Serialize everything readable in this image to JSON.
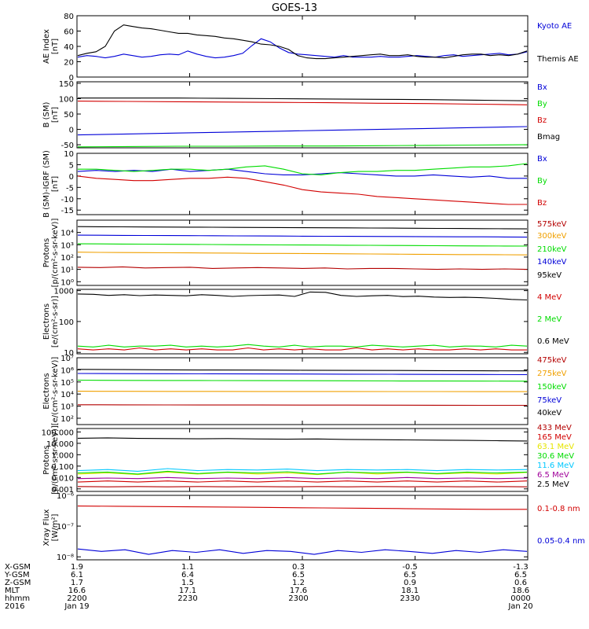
{
  "title": "GOES-13",
  "colors": {
    "black": "#000000",
    "blue": "#0000d8",
    "green": "#00dc00",
    "red": "#d20000",
    "darkred": "#b40000",
    "orange": "#f0a000",
    "yellow": "#e6e600",
    "cyan": "#00c8ff",
    "purple": "#a0009a"
  },
  "chart_data": [
    {
      "type": "line",
      "panel": "ae",
      "ylabel": [
        "AE Index",
        "[nT]"
      ],
      "yscale": "linear",
      "ylim": [
        0,
        80
      ],
      "yticks": [
        {
          "v": 0,
          "t": "0"
        },
        {
          "v": 20,
          "t": "20"
        },
        {
          "v": 40,
          "t": "40"
        },
        {
          "v": 60,
          "t": "60"
        },
        {
          "v": 80,
          "t": "80"
        }
      ],
      "series": [
        {
          "name": "Kyoto AE",
          "color": "blue",
          "y": [
            26,
            28,
            27,
            25,
            27,
            30,
            28,
            26,
            27,
            29,
            30,
            29,
            34,
            30,
            27,
            25,
            26,
            28,
            31,
            41,
            50,
            46,
            38,
            32,
            30,
            29,
            28,
            27,
            26,
            28,
            26,
            26,
            26,
            27,
            26,
            26,
            27,
            28,
            27,
            26,
            28,
            29,
            27,
            28,
            29,
            30,
            31,
            29,
            30,
            33
          ]
        },
        {
          "name": "Themis AE",
          "color": "black",
          "y": [
            28,
            31,
            33,
            40,
            60,
            68,
            66,
            64,
            63,
            61,
            59,
            57,
            57,
            55,
            54,
            53,
            51,
            50,
            48,
            46,
            43,
            42,
            40,
            36,
            28,
            25,
            24,
            24,
            25,
            26,
            27,
            28,
            29,
            30,
            28,
            28,
            29,
            27,
            26,
            26,
            25,
            27,
            29,
            30,
            30,
            28,
            29,
            28,
            30,
            34
          ]
        }
      ]
    },
    {
      "type": "line",
      "panel": "bsm",
      "ylabel": [
        "B (SM)",
        "[nT]"
      ],
      "yscale": "linear",
      "ylim": [
        -60,
        155
      ],
      "yticks": [
        {
          "v": -50,
          "t": "-50"
        },
        {
          "v": 0,
          "t": "0"
        },
        {
          "v": 50,
          "t": "50"
        },
        {
          "v": 100,
          "t": "100"
        },
        {
          "v": 150,
          "t": "150"
        }
      ],
      "series": [
        {
          "name": "Bx",
          "color": "blue",
          "y": [
            -18,
            -15,
            -12,
            -9,
            -6,
            -3,
            0,
            3,
            6,
            9
          ]
        },
        {
          "name": "By",
          "color": "green",
          "y": [
            -57,
            -56,
            -55,
            -55,
            -54,
            -54,
            -53,
            -52,
            -51,
            -50
          ]
        },
        {
          "name": "Bz",
          "color": "red",
          "y": [
            92,
            91,
            90,
            89,
            88,
            87,
            85,
            84,
            82,
            80
          ]
        },
        {
          "name": "Bmag",
          "color": "black",
          "y": [
            102,
            102,
            102,
            101,
            100,
            99,
            98,
            97,
            95,
            93
          ]
        }
      ]
    },
    {
      "type": "line",
      "panel": "bresid",
      "ylabel": [
        "B (SM)-IGRF (SM)",
        "[nT]"
      ],
      "yscale": "linear",
      "ylim": [
        -17,
        10
      ],
      "yticks": [
        {
          "v": -15,
          "t": "-15"
        },
        {
          "v": -10,
          "t": "-10"
        },
        {
          "v": -5,
          "t": "-5"
        },
        {
          "v": 0,
          "t": "0"
        },
        {
          "v": 5,
          "t": "5"
        },
        {
          "v": 10,
          "t": "10"
        }
      ],
      "series": [
        {
          "name": "Bx",
          "color": "blue",
          "y": [
            2,
            2.5,
            2,
            2.5,
            2,
            3,
            2,
            2.5,
            3,
            2,
            1,
            0.5,
            0.5,
            1,
            1.5,
            1,
            0.5,
            0,
            0,
            0.5,
            0,
            -0.5,
            0,
            -1,
            -1
          ]
        },
        {
          "name": "By",
          "color": "green",
          "y": [
            3,
            3,
            2.5,
            2,
            2.5,
            3,
            3,
            2.5,
            3,
            4,
            4.5,
            3,
            1,
            0.5,
            1.5,
            2,
            2,
            2.5,
            2.5,
            3,
            3.5,
            4,
            4,
            4.5,
            5.5
          ]
        },
        {
          "name": "Bz",
          "color": "red",
          "y": [
            0,
            -1,
            -1.5,
            -2,
            -2,
            -1.5,
            -1,
            -1,
            -0.5,
            -1,
            -2.5,
            -4,
            -6,
            -7,
            -7.5,
            -8,
            -9,
            -9.5,
            -10,
            -10.5,
            -11,
            -11.5,
            -12,
            -12.5,
            -12.5
          ]
        }
      ]
    },
    {
      "type": "line",
      "panel": "protons_low",
      "ylabel": [
        "Protons",
        "[p/(cm²-s-sr-keV)]"
      ],
      "yscale": "log",
      "ylim": [
        0.5,
        100000
      ],
      "yticks": [
        {
          "v": 1,
          "t": "10⁰"
        },
        {
          "v": 10,
          "t": "10¹"
        },
        {
          "v": 100,
          "t": "10²"
        },
        {
          "v": 1000,
          "t": "10³"
        },
        {
          "v": 10000,
          "t": "10⁴"
        }
      ],
      "series": [
        {
          "name": "575keV",
          "color": "darkred",
          "y": [
            15,
            14,
            16,
            13,
            14,
            15,
            12,
            13,
            14,
            13,
            12,
            13,
            11,
            12,
            12,
            11,
            10,
            11,
            10,
            11,
            10
          ]
        },
        {
          "name": "300keV",
          "color": "orange",
          "y": [
            250,
            240,
            235,
            230,
            225,
            220,
            215,
            210,
            200,
            200,
            195,
            190,
            185,
            180,
            175,
            170,
            165,
            160,
            160,
            155,
            150
          ]
        },
        {
          "name": "210keV",
          "color": "green",
          "y": [
            1200,
            1180,
            1150,
            1120,
            1100,
            1080,
            1050,
            1020,
            1000,
            980,
            960,
            940,
            920,
            900,
            880,
            860,
            840,
            820,
            800,
            790,
            780
          ]
        },
        {
          "name": "140keV",
          "color": "blue",
          "y": [
            6000,
            5900,
            5800,
            5700,
            5600,
            5500,
            5400,
            5300,
            5200,
            5100,
            5000,
            4900,
            4800,
            4750,
            4700,
            4600,
            4500,
            4450,
            4400,
            4300,
            4200
          ]
        },
        {
          "name": "95keV",
          "color": "black",
          "y": [
            30000,
            29000,
            28500,
            28000,
            27500,
            27000,
            26500,
            26000,
            25500,
            25000,
            24500,
            24000,
            23500,
            23000,
            22500,
            22000,
            21500,
            21000,
            20500,
            20000,
            19500
          ]
        }
      ]
    },
    {
      "type": "line",
      "panel": "electrons_mev",
      "ylabel": [
        "Electrons",
        "[e/(cm²-s-sr)]"
      ],
      "yscale": "log",
      "ylim": [
        9,
        1100
      ],
      "yticks": [
        {
          "v": 10,
          "t": "10"
        },
        {
          "v": 100,
          "t": "100"
        },
        {
          "v": 1000,
          "t": "1000"
        }
      ],
      "series": [
        {
          "name": "4 MeV",
          "color": "red",
          "y": [
            13,
            12,
            13,
            12,
            14,
            12,
            13,
            12,
            13,
            12,
            12,
            14,
            12,
            13,
            12,
            13,
            12,
            12,
            14,
            12,
            13,
            12,
            13,
            12,
            12,
            13,
            12,
            13,
            12,
            12
          ]
        },
        {
          "name": "2 MeV",
          "color": "green",
          "y": [
            16,
            15,
            17,
            15,
            16,
            16,
            17,
            15,
            16,
            15,
            16,
            18,
            16,
            15,
            17,
            15,
            16,
            16,
            15,
            17,
            16,
            15,
            16,
            17,
            15,
            16,
            16,
            15,
            17,
            16
          ]
        },
        {
          "name": "0.6 MeV",
          "color": "black",
          "y": [
            780,
            760,
            700,
            740,
            690,
            720,
            700,
            680,
            740,
            700,
            650,
            690,
            710,
            720,
            650,
            900,
            880,
            700,
            650,
            680,
            700,
            640,
            660,
            620,
            600,
            610,
            590,
            560,
            520,
            500
          ]
        }
      ]
    },
    {
      "type": "line",
      "panel": "electrons_kev",
      "ylabel": [
        "Electrons",
        "[e/(cm²-s-sr-keV)]"
      ],
      "yscale": "log",
      "ylim": [
        30,
        10000000
      ],
      "yticks": [
        {
          "v": 100,
          "t": "10²"
        },
        {
          "v": 1000,
          "t": "10³"
        },
        {
          "v": 10000,
          "t": "10⁴"
        },
        {
          "v": 100000,
          "t": "10⁵"
        },
        {
          "v": 1000000,
          "t": "10⁶"
        },
        {
          "v": 10000000,
          "t": "10⁷"
        }
      ],
      "series": [
        {
          "name": "475keV",
          "color": "darkred",
          "y": [
            1300,
            1280,
            1260,
            1250,
            1240,
            1230,
            1220,
            1200,
            1190,
            1180,
            1170
          ]
        },
        {
          "name": "275keV",
          "color": "orange",
          "y": [
            17000,
            16800,
            16600,
            16500,
            16400,
            16300,
            16200,
            16100,
            16000,
            15900,
            15800
          ]
        },
        {
          "name": "150keV",
          "color": "green",
          "y": [
            140000,
            135000,
            132000,
            130000,
            128000,
            126000,
            124000,
            122000,
            120000,
            118000,
            116000
          ]
        },
        {
          "name": "75keV",
          "color": "blue",
          "y": [
            500000,
            490000,
            480000,
            470000,
            460000,
            450000,
            440000,
            430000,
            420000,
            410000,
            400000
          ]
        },
        {
          "name": "40keV",
          "color": "black",
          "y": [
            1100000,
            1050000,
            1000000,
            970000,
            950000,
            930000,
            900000,
            880000,
            860000,
            840000,
            820000
          ]
        }
      ]
    },
    {
      "type": "line",
      "panel": "protons_mev",
      "ylabel": [
        "Protons",
        "[p/(cm²-s-sr-keV)]"
      ],
      "yscale": "log",
      "ylim": [
        0.0006,
        200
      ],
      "yticks": [
        {
          "v": 0.001,
          "t": "0.001"
        },
        {
          "v": 0.01,
          "t": "0.010"
        },
        {
          "v": 0.1,
          "t": "0.100"
        },
        {
          "v": 1,
          "t": "1.000"
        },
        {
          "v": 10,
          "t": "10.000"
        },
        {
          "v": 100,
          "t": "100.000"
        }
      ],
      "series": [
        {
          "name": "433 MeV",
          "color": "darkred",
          "y": [
            0.0016,
            0.0015,
            0.0016,
            0.0015,
            0.0016,
            0.0015,
            0.0016,
            0.0015,
            0.0016,
            0.0015,
            0.0016,
            0.0015,
            0.0016,
            0.0015,
            0.0016,
            0.0015
          ]
        },
        {
          "name": "165 MeV",
          "color": "red",
          "y": [
            0.004,
            0.005,
            0.004,
            0.005,
            0.004,
            0.005,
            0.004,
            0.005,
            0.004,
            0.005,
            0.004,
            0.005,
            0.004,
            0.005,
            0.004,
            0.005
          ]
        },
        {
          "name": "63.1 MeV",
          "color": "yellow",
          "y": [
            0.02,
            0.025,
            0.018,
            0.03,
            0.02,
            0.028,
            0.02,
            0.025,
            0.018,
            0.03,
            0.02,
            0.028,
            0.02,
            0.025,
            0.02,
            0.028
          ]
        },
        {
          "name": "30.6 MeV",
          "color": "green",
          "y": [
            0.025,
            0.03,
            0.02,
            0.035,
            0.022,
            0.03,
            0.025,
            0.032,
            0.02,
            0.03,
            0.025,
            0.03,
            0.022,
            0.03,
            0.025,
            0.03
          ]
        },
        {
          "name": "11.6 MeV",
          "color": "cyan",
          "y": [
            0.04,
            0.05,
            0.035,
            0.06,
            0.04,
            0.05,
            0.045,
            0.055,
            0.04,
            0.05,
            0.045,
            0.05,
            0.04,
            0.05,
            0.045,
            0.05
          ]
        },
        {
          "name": "6.5 MeV",
          "color": "purple",
          "y": [
            0.008,
            0.009,
            0.008,
            0.01,
            0.008,
            0.009,
            0.008,
            0.01,
            0.008,
            0.009,
            0.008,
            0.01,
            0.008,
            0.009,
            0.008,
            0.009
          ]
        },
        {
          "name": "2.5 MeV",
          "color": "black",
          "y": [
            28,
            30,
            27,
            26,
            25,
            26,
            24,
            23,
            24,
            22,
            21,
            20,
            19,
            18,
            17,
            16
          ]
        }
      ]
    },
    {
      "type": "line",
      "panel": "xray",
      "ylabel": [
        "Xray Flux",
        "[W/m²]"
      ],
      "yscale": "log",
      "ylim": [
        8e-09,
        1e-06
      ],
      "yticks": [
        {
          "v": 1e-08,
          "t": "10⁻⁸"
        },
        {
          "v": 1e-07,
          "t": "10⁻⁷"
        },
        {
          "v": 1e-06,
          "t": "10⁻⁶"
        }
      ],
      "series": [
        {
          "name": "0.1-0.8 nm",
          "color": "red",
          "y": [
            4.5e-07,
            4.4e-07,
            4.3e-07,
            4.2e-07,
            4.1e-07,
            4e-07,
            3.9e-07,
            3.8e-07,
            3.7e-07,
            3.6e-07,
            3.5e-07,
            3.5e-07
          ]
        },
        {
          "name": "0.05-0.4 nm",
          "color": "blue",
          "y": [
            1.8e-08,
            1.5e-08,
            1.7e-08,
            1.2e-08,
            1.6e-08,
            1.4e-08,
            1.7e-08,
            1.3e-08,
            1.6e-08,
            1.5e-08,
            1.2e-08,
            1.6e-08,
            1.4e-08,
            1.7e-08,
            1.5e-08,
            1.3e-08,
            1.6e-08,
            1.4e-08,
            1.7e-08,
            1.5e-08
          ]
        }
      ]
    }
  ],
  "rowLabels": [
    "X-GSM",
    "Y-GSM",
    "Z-GSM",
    "MLT",
    "hhmm",
    "2016"
  ],
  "rowValues": [
    [
      "1.9",
      "1.1",
      "0.3",
      "-0.5",
      "-1.3"
    ],
    [
      "6.1",
      "6.4",
      "6.5",
      "6.5",
      "6.5"
    ],
    [
      "1.7",
      "1.5",
      "1.2",
      "0.9",
      "0.6"
    ],
    [
      "16.6",
      "17.1",
      "17.6",
      "18.1",
      "18.6"
    ],
    [
      "2200",
      "2230",
      "2300",
      "2330",
      "0000"
    ],
    [
      "Jan 19",
      "",
      "",
      "",
      "Jan 20"
    ]
  ]
}
